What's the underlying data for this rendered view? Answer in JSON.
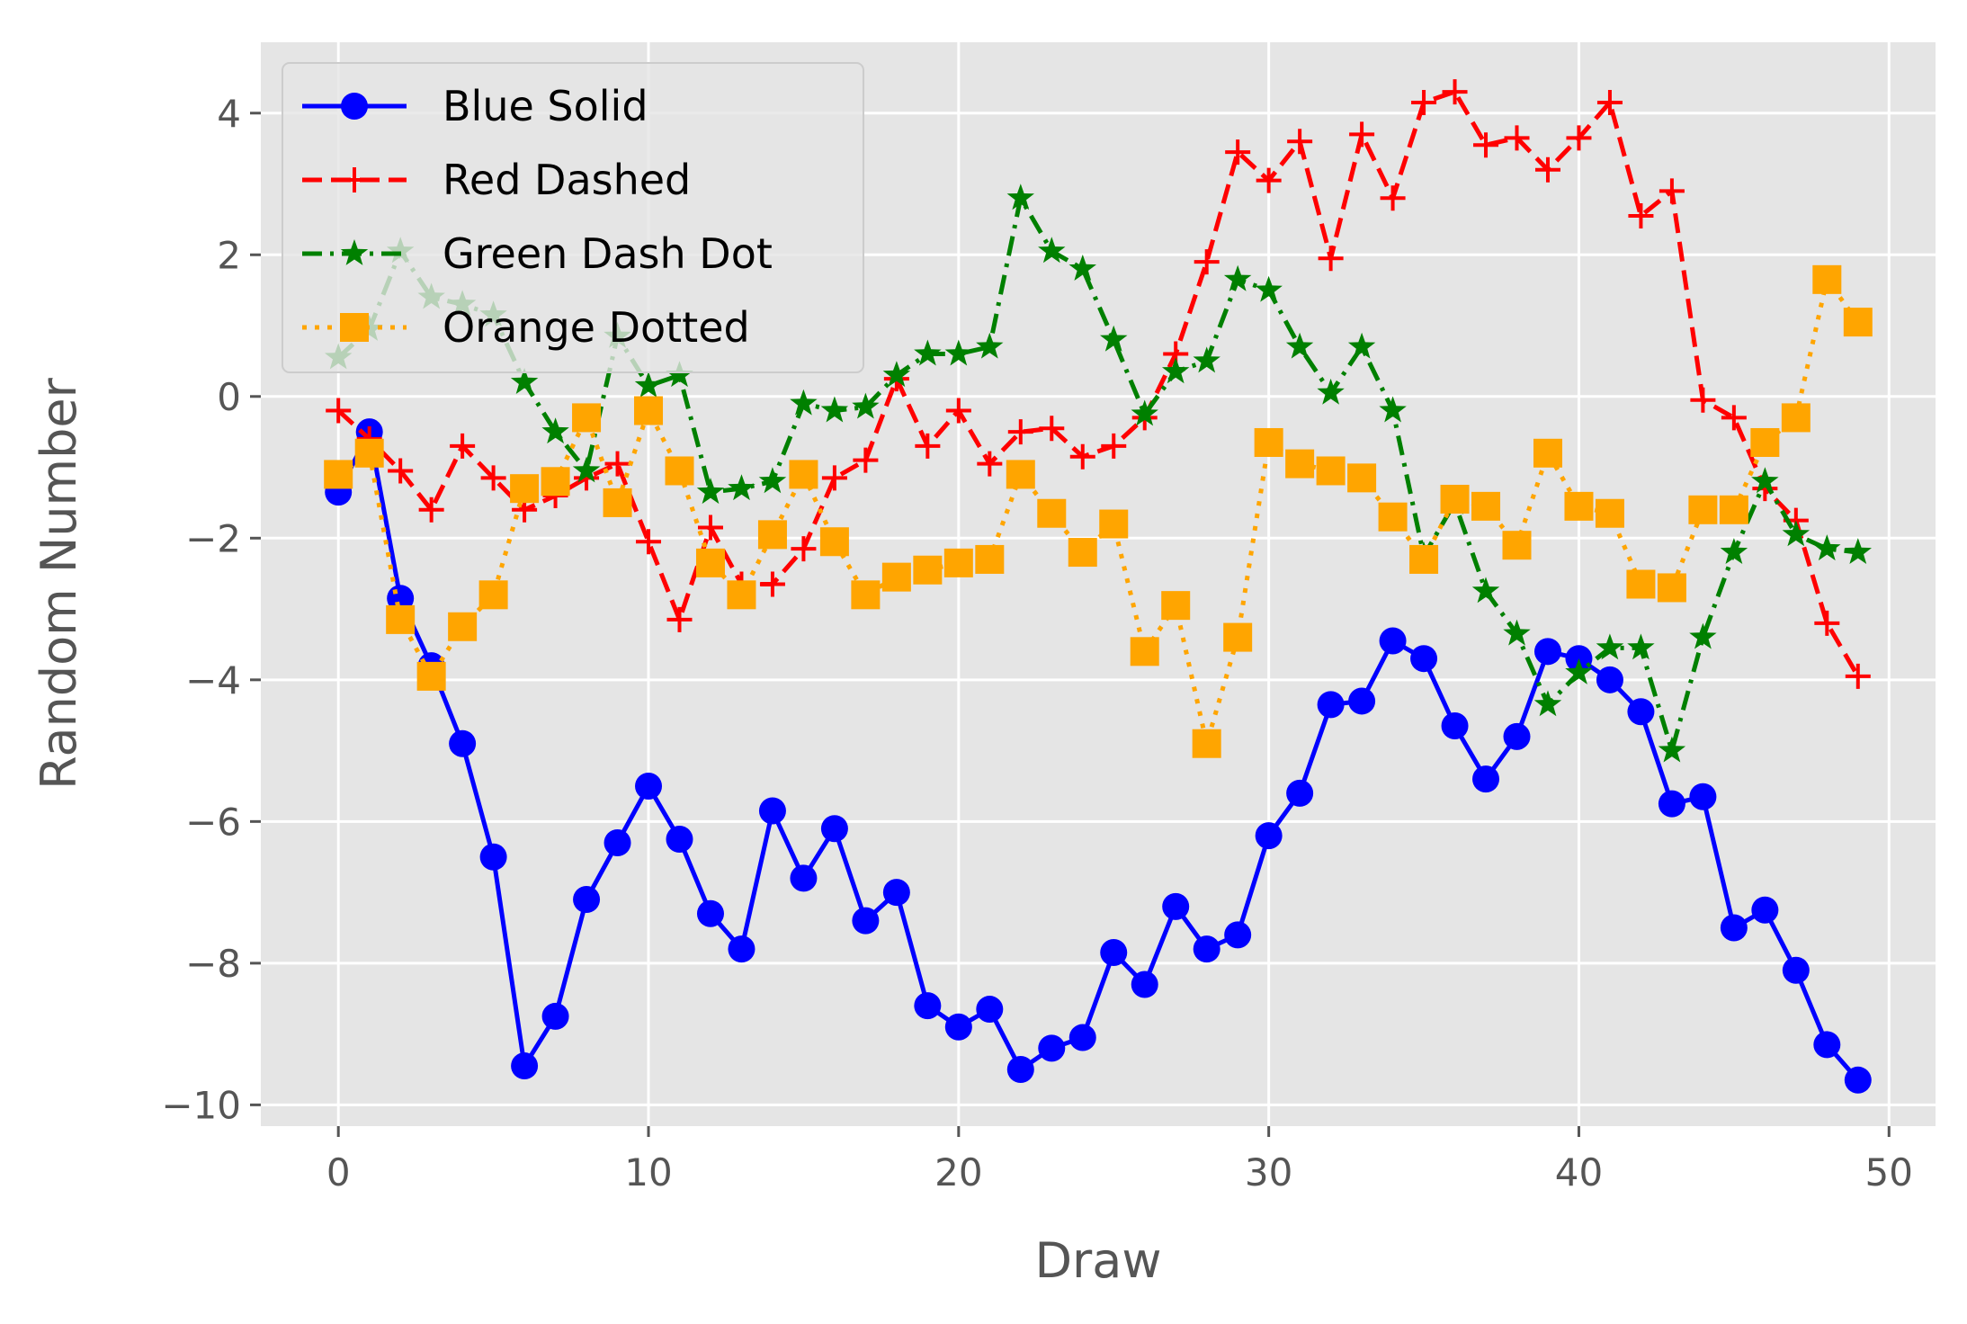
{
  "chart_data": {
    "type": "line",
    "title": "",
    "xlabel": "Draw",
    "ylabel": "Random Number",
    "xlim": [
      -2.5,
      51.5
    ],
    "ylim": [
      -10.3,
      5.0
    ],
    "xticks": [
      0,
      10,
      20,
      30,
      40,
      50
    ],
    "yticks": [
      4,
      2,
      0,
      -2,
      -4,
      -6,
      -8,
      -10
    ],
    "xtick_labels": [
      "0",
      "10",
      "20",
      "30",
      "40",
      "50"
    ],
    "ytick_labels": [
      "4",
      "2",
      "0",
      "−2",
      "−4",
      "−6",
      "−8",
      "−10"
    ],
    "grid": true,
    "legend_position": "upper-left",
    "x": [
      0,
      1,
      2,
      3,
      4,
      5,
      6,
      7,
      8,
      9,
      10,
      11,
      12,
      13,
      14,
      15,
      16,
      17,
      18,
      19,
      20,
      21,
      22,
      23,
      24,
      25,
      26,
      27,
      28,
      29,
      30,
      31,
      32,
      33,
      34,
      35,
      36,
      37,
      38,
      39,
      40,
      41,
      42,
      43,
      44,
      45,
      46,
      47,
      48,
      49
    ],
    "series": [
      {
        "name": "Blue Solid",
        "color": "#0000ff",
        "linestyle": "solid",
        "marker": "circle",
        "values": [
          -1.35,
          -0.5,
          -2.85,
          -3.8,
          -4.9,
          -6.5,
          -9.45,
          -8.75,
          -7.1,
          -6.3,
          -5.5,
          -6.25,
          -7.3,
          -7.8,
          -5.85,
          -6.8,
          -6.1,
          -7.4,
          -7.0,
          -8.6,
          -8.9,
          -8.65,
          -9.5,
          -9.2,
          -9.05,
          -7.85,
          -8.3,
          -7.2,
          -7.8,
          -7.6,
          -6.2,
          -5.6,
          -4.35,
          -4.3,
          -3.45,
          -3.7,
          -4.65,
          -5.4,
          -4.8,
          -3.6,
          -3.7,
          -4.0,
          -4.45,
          -5.75,
          -5.65,
          -7.5,
          -7.25,
          -8.1,
          -9.15,
          -9.65
        ]
      },
      {
        "name": "Red Dashed",
        "color": "#ff0000",
        "linestyle": "dashed",
        "marker": "plus",
        "values": [
          -0.2,
          -0.6,
          -1.05,
          -1.6,
          -0.7,
          -1.15,
          -1.6,
          -1.4,
          -1.15,
          -0.95,
          -2.05,
          -3.15,
          -1.85,
          -2.65,
          -2.65,
          -2.15,
          -1.15,
          -0.9,
          0.25,
          -0.7,
          -0.2,
          -0.95,
          -0.5,
          -0.45,
          -0.85,
          -0.7,
          -0.3,
          0.6,
          1.9,
          3.45,
          3.05,
          3.6,
          1.95,
          3.7,
          2.8,
          4.15,
          4.3,
          3.55,
          3.65,
          3.2,
          3.65,
          4.15,
          2.55,
          2.9,
          -0.05,
          -0.3,
          -1.3,
          -1.75,
          -3.2,
          -3.95
        ]
      },
      {
        "name": "Green Dash Dot",
        "color": "#008000",
        "linestyle": "dashdot",
        "marker": "star",
        "values": [
          0.55,
          0.95,
          2.05,
          1.4,
          1.3,
          1.15,
          0.2,
          -0.5,
          -1.05,
          0.85,
          0.15,
          0.3,
          -1.35,
          -1.3,
          -1.2,
          -0.1,
          -0.2,
          -0.15,
          0.3,
          0.6,
          0.6,
          0.7,
          2.8,
          2.05,
          1.8,
          0.8,
          -0.25,
          0.35,
          0.5,
          1.65,
          1.5,
          0.7,
          0.05,
          0.7,
          -0.2,
          -2.25,
          -1.5,
          -2.75,
          -3.35,
          -4.35,
          -3.9,
          -3.55,
          -3.55,
          -5.0,
          -3.4,
          -2.2,
          -1.2,
          -1.95,
          -2.15,
          -2.2
        ]
      },
      {
        "name": "Orange Dotted",
        "color": "#ffa500",
        "linestyle": "dotted",
        "marker": "square",
        "values": [
          -1.1,
          -0.8,
          -3.15,
          -3.95,
          -3.25,
          -2.8,
          -1.3,
          -1.2,
          -0.3,
          -1.5,
          -0.2,
          -1.05,
          -2.35,
          -2.8,
          -1.95,
          -1.1,
          -2.05,
          -2.8,
          -2.55,
          -2.45,
          -2.35,
          -2.3,
          -1.1,
          -1.65,
          -2.2,
          -1.8,
          -3.6,
          -2.95,
          -4.9,
          -3.4,
          -0.65,
          -0.95,
          -1.05,
          -1.15,
          -1.7,
          -2.3,
          -1.45,
          -1.55,
          -2.1,
          -0.8,
          -1.55,
          -1.65,
          -2.65,
          -2.7,
          -1.6,
          -1.6,
          -0.65,
          -0.3,
          1.65,
          1.05
        ]
      }
    ]
  }
}
